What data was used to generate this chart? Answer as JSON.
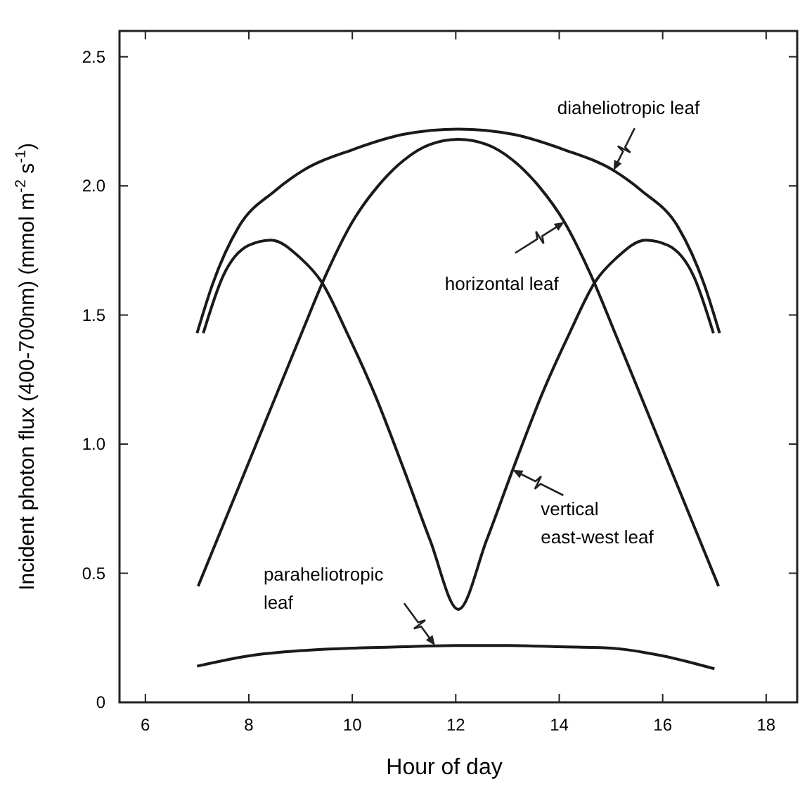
{
  "chart_data": {
    "type": "line",
    "xlabel": "Hour of day",
    "ylabel": "Incident photon flux (400-700nm) (mmol m$^{-2}$ s$^{-1}$)",
    "xlim": [
      5.5,
      18.6
    ],
    "ylim": [
      0,
      2.6
    ],
    "xticks": [
      6,
      8,
      10,
      12,
      14,
      16,
      18
    ],
    "yticks": [
      0,
      0.5,
      {
        "value": 1,
        "label": "1.0"
      },
      1.5,
      {
        "value": 2,
        "label": "2.0"
      },
      2.5
    ],
    "grid": false,
    "marker": "none",
    "line_style": "solid",
    "series": [
      {
        "color": "#1a1a1a",
        "x": [
          7.0,
          7.3,
          7.8,
          8.5,
          9.05,
          10.0,
          11.0,
          12.05,
          13.1,
          14.1,
          15.05,
          15.6,
          16.3,
          16.8,
          17.1
        ],
        "values": [
          1.43,
          1.62,
          1.84,
          1.98,
          2.06,
          2.14,
          2.2,
          2.22,
          2.2,
          2.14,
          2.06,
          1.98,
          1.84,
          1.62,
          1.43
        ]
      },
      {
        "color": "#1a1a1a",
        "x": [
          7.02,
          8.0,
          9.0,
          9.5,
          10.0,
          10.5,
          11.0,
          11.5,
          12.05,
          12.6,
          13.1,
          13.6,
          14.1,
          14.6,
          15.1,
          16.1,
          17.08
        ],
        "values": [
          0.45,
          0.93,
          1.42,
          1.66,
          1.86,
          2.0,
          2.1,
          2.16,
          2.18,
          2.16,
          2.1,
          2.0,
          1.86,
          1.66,
          1.42,
          0.93,
          0.45
        ]
      },
      {
        "color": "#1a1a1a",
        "x": [
          7.12,
          7.5,
          8.0,
          8.43,
          9.0,
          9.4,
          9.9,
          10.44,
          11.0,
          11.5,
          12.05,
          12.6,
          13.1,
          13.66,
          14.2,
          14.7,
          15.1,
          15.67,
          16.1,
          16.6,
          16.98
        ],
        "values": [
          1.43,
          1.65,
          1.77,
          1.79,
          1.72,
          1.63,
          1.43,
          1.19,
          0.9,
          0.63,
          0.36,
          0.63,
          0.9,
          1.19,
          1.43,
          1.63,
          1.72,
          1.79,
          1.77,
          1.65,
          1.43
        ]
      },
      {
        "color": "#1a1a1a",
        "x": [
          7.0,
          8.0,
          9.0,
          10.0,
          11.0,
          12.0,
          13.0,
          14.0,
          15.0,
          16.0,
          17.0
        ],
        "values": [
          0.14,
          0.18,
          0.2,
          0.21,
          0.215,
          0.22,
          0.22,
          0.215,
          0.21,
          0.18,
          0.13
        ]
      }
    ],
    "annotations": [
      {
        "text": "diaheliotropic leaf",
        "x": 15.05,
        "y": 2.06
      },
      {
        "text": "horizontal leaf",
        "x": 14.1,
        "y": 1.86
      },
      {
        "text": "vertical\neast-west leaf",
        "x": 13.1,
        "y": 0.9
      },
      {
        "text": "paraheliotropic\nleaf",
        "x": 11.6,
        "y": 0.22
      }
    ]
  }
}
